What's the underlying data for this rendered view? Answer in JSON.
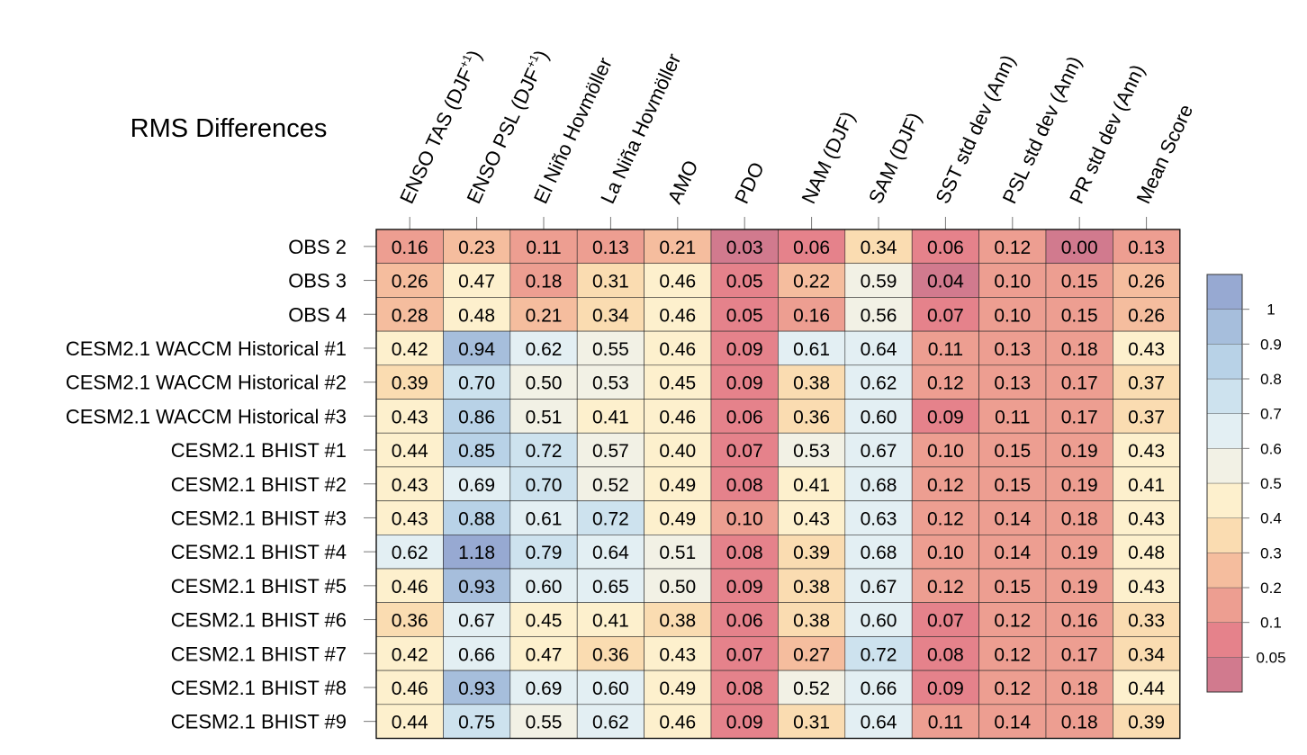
{
  "chart_data": {
    "type": "heatmap",
    "title": "RMS Differences",
    "columns": [
      {
        "main": "ENSO TAS (DJF",
        "sup": "+1",
        "tail": ")"
      },
      {
        "main": "ENSO PSL (DJF",
        "sup": "+1",
        "tail": ")"
      },
      {
        "main": "El Niño Hovmöller",
        "sup": "",
        "tail": ""
      },
      {
        "main": "La Niña Hovmöller",
        "sup": "",
        "tail": ""
      },
      {
        "main": "AMO",
        "sup": "",
        "tail": ""
      },
      {
        "main": "PDO",
        "sup": "",
        "tail": ""
      },
      {
        "main": "NAM (DJF)",
        "sup": "",
        "tail": ""
      },
      {
        "main": "SAM (DJF)",
        "sup": "",
        "tail": ""
      },
      {
        "main": "SST std dev (Ann)",
        "sup": "",
        "tail": ""
      },
      {
        "main": "PSL std dev (Ann)",
        "sup": "",
        "tail": ""
      },
      {
        "main": "PR std dev (Ann)",
        "sup": "",
        "tail": ""
      },
      {
        "main": "Mean Score",
        "sup": "",
        "tail": ""
      }
    ],
    "rows": [
      "OBS 2",
      "OBS 3",
      "OBS 4",
      "CESM2.1 WACCM Historical #1",
      "CESM2.1 WACCM Historical #2",
      "CESM2.1 WACCM Historical #3",
      "CESM2.1 BHIST #1",
      "CESM2.1 BHIST #2",
      "CESM2.1 BHIST #3",
      "CESM2.1 BHIST #4",
      "CESM2.1 BHIST #5",
      "CESM2.1 BHIST #6",
      "CESM2.1 BHIST #7",
      "CESM2.1 BHIST #8",
      "CESM2.1 BHIST #9"
    ],
    "values": [
      [
        0.16,
        0.23,
        0.11,
        0.13,
        0.21,
        0.03,
        0.06,
        0.34,
        0.06,
        0.12,
        0.0,
        0.13
      ],
      [
        0.26,
        0.47,
        0.18,
        0.31,
        0.46,
        0.05,
        0.22,
        0.59,
        0.04,
        0.1,
        0.15,
        0.26
      ],
      [
        0.28,
        0.48,
        0.21,
        0.34,
        0.46,
        0.05,
        0.16,
        0.56,
        0.07,
        0.1,
        0.15,
        0.26
      ],
      [
        0.42,
        0.94,
        0.62,
        0.55,
        0.46,
        0.09,
        0.61,
        0.64,
        0.11,
        0.13,
        0.18,
        0.43
      ],
      [
        0.39,
        0.7,
        0.5,
        0.53,
        0.45,
        0.09,
        0.38,
        0.62,
        0.12,
        0.13,
        0.17,
        0.37
      ],
      [
        0.43,
        0.86,
        0.51,
        0.41,
        0.46,
        0.06,
        0.36,
        0.6,
        0.09,
        0.11,
        0.17,
        0.37
      ],
      [
        0.44,
        0.85,
        0.72,
        0.57,
        0.4,
        0.07,
        0.53,
        0.67,
        0.1,
        0.15,
        0.19,
        0.43
      ],
      [
        0.43,
        0.69,
        0.7,
        0.52,
        0.49,
        0.08,
        0.41,
        0.68,
        0.12,
        0.15,
        0.19,
        0.41
      ],
      [
        0.43,
        0.88,
        0.61,
        0.72,
        0.49,
        0.1,
        0.43,
        0.63,
        0.12,
        0.14,
        0.18,
        0.43
      ],
      [
        0.62,
        1.18,
        0.79,
        0.64,
        0.51,
        0.08,
        0.39,
        0.68,
        0.1,
        0.14,
        0.19,
        0.48
      ],
      [
        0.46,
        0.93,
        0.6,
        0.65,
        0.5,
        0.09,
        0.38,
        0.67,
        0.12,
        0.15,
        0.19,
        0.43
      ],
      [
        0.36,
        0.67,
        0.45,
        0.41,
        0.38,
        0.06,
        0.38,
        0.6,
        0.07,
        0.12,
        0.16,
        0.33
      ],
      [
        0.42,
        0.66,
        0.47,
        0.36,
        0.43,
        0.07,
        0.27,
        0.72,
        0.08,
        0.12,
        0.17,
        0.34
      ],
      [
        0.46,
        0.93,
        0.69,
        0.6,
        0.49,
        0.08,
        0.52,
        0.66,
        0.09,
        0.12,
        0.18,
        0.44
      ],
      [
        0.44,
        0.75,
        0.55,
        0.62,
        0.46,
        0.09,
        0.31,
        0.64,
        0.11,
        0.14,
        0.18,
        0.39
      ]
    ],
    "colorbar": {
      "levels": [
        0.05,
        0.1,
        0.2,
        0.3,
        0.4,
        0.5,
        0.6,
        0.7,
        0.8,
        0.9,
        1
      ],
      "labels": [
        "0.05",
        "0.1",
        "0.2",
        "0.3",
        "0.4",
        "0.5",
        "0.6",
        "0.7",
        "0.8",
        "0.9",
        "1"
      ],
      "colors": [
        "#d17a8e",
        "#e5828b",
        "#ed9e91",
        "#f5bd9e",
        "#fadcb1",
        "#fdf0cd",
        "#f2f1e5",
        "#e3eff3",
        "#cde2ee",
        "#b8d2e7",
        "#a6bedc",
        "#97a9d2"
      ]
    }
  }
}
